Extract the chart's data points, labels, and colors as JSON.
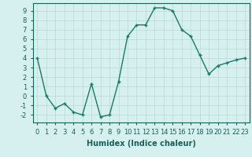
{
  "x": [
    0,
    1,
    2,
    3,
    4,
    5,
    6,
    7,
    8,
    9,
    10,
    11,
    12,
    13,
    14,
    15,
    16,
    17,
    18,
    19,
    20,
    21,
    22,
    23
  ],
  "y": [
    4.0,
    0.0,
    -1.3,
    -0.8,
    -1.7,
    -2.0,
    1.3,
    -2.2,
    -2.0,
    1.5,
    6.3,
    7.5,
    7.5,
    9.3,
    9.3,
    9.0,
    7.0,
    6.3,
    4.3,
    2.3,
    3.2,
    3.5,
    3.8,
    4.0
  ],
  "line_color": "#1a7a6a",
  "marker": "+",
  "marker_size": 3,
  "marker_lw": 1.0,
  "line_width": 1.0,
  "bg_color": "#d6f0ef",
  "grid_color": "#b8d8d4",
  "xlabel": "Humidex (Indice chaleur)",
  "xlim": [
    -0.5,
    23.5
  ],
  "ylim": [
    -2.8,
    9.8
  ],
  "yticks": [
    -2,
    -1,
    0,
    1,
    2,
    3,
    4,
    5,
    6,
    7,
    8,
    9
  ],
  "xticks": [
    0,
    1,
    2,
    3,
    4,
    5,
    6,
    7,
    8,
    9,
    10,
    11,
    12,
    13,
    14,
    15,
    16,
    17,
    18,
    19,
    20,
    21,
    22,
    23
  ],
  "xlabel_fontsize": 7,
  "tick_fontsize": 6,
  "label_color": "#1a5f5a"
}
